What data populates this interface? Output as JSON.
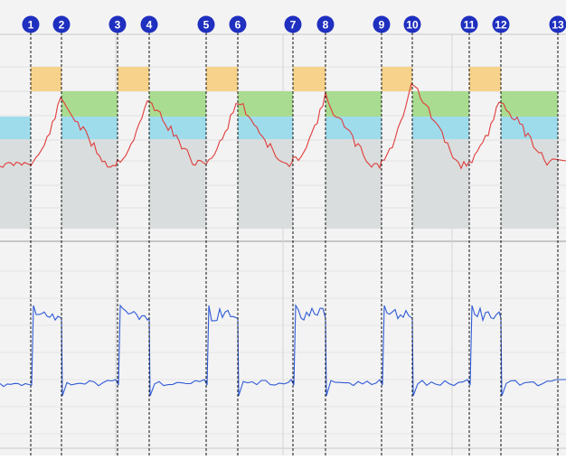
{
  "chart_data": [
    {
      "type": "line",
      "title": "",
      "xlabel": "",
      "ylabel": "",
      "grid": true,
      "markers": [
        "1",
        "2",
        "3",
        "4",
        "5",
        "6",
        "7",
        "8",
        "9",
        "10",
        "11",
        "12",
        "13"
      ],
      "band_colors": {
        "orange": "#f6d28a",
        "green": "#a9dc90",
        "blue": "#9edcec",
        "gray": "#d9dddd",
        "series": "#e23b3b"
      },
      "series": [
        {
          "name": "",
          "color": "#e23b3b"
        }
      ]
    },
    {
      "type": "line",
      "title": "",
      "xlabel": "",
      "ylabel": "",
      "grid": true,
      "series": [
        {
          "name": "",
          "color": "#2f5bd6"
        }
      ]
    }
  ]
}
